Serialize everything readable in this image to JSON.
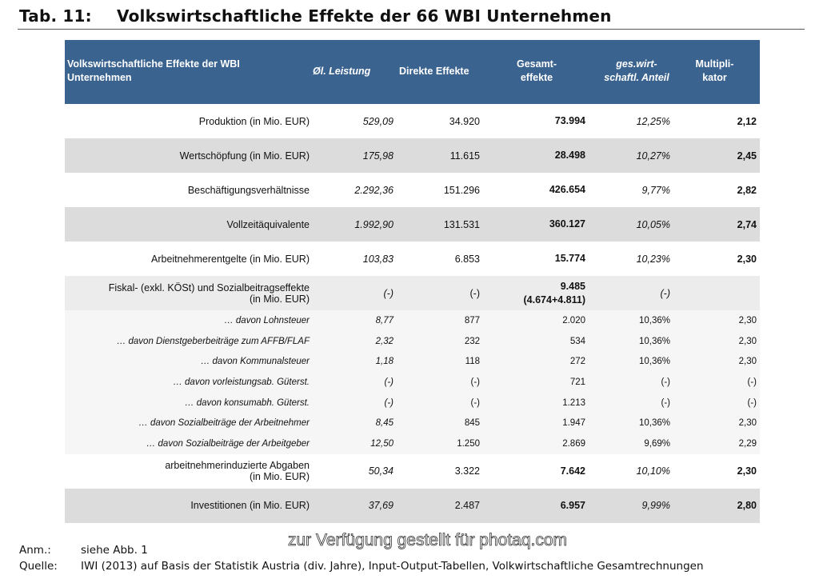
{
  "title": {
    "number": "Tab. 11:",
    "text": "Volkswirtschaftliche Effekte der 66 WBI Unternehmen"
  },
  "header": {
    "label": "Volkswirtschaftliche Effekte der WBI Unternehmen",
    "col1": "Øl. Leistung",
    "col2": "Direkte Effekte",
    "col3": "Gesamt-\neffekte",
    "col4": "ges.wirt-\nschaftl. Anteil",
    "col5": "Multipli-\nkator"
  },
  "rows": [
    {
      "label": "Produktion (in Mio. EUR)",
      "v1": "529,09",
      "v2": "34.920",
      "v3": "73.994",
      "v4": "12,25%",
      "v5": "2,12"
    },
    {
      "label": "Wertschöpfung (in Mio. EUR)",
      "v1": "175,98",
      "v2": "11.615",
      "v3": "28.498",
      "v4": "10,27%",
      "v5": "2,45"
    },
    {
      "label": "Beschäftigungsverhältnisse",
      "v1": "2.292,36",
      "v2": "151.296",
      "v3": "426.654",
      "v4": "9,77%",
      "v5": "2,82"
    },
    {
      "label": "Vollzeitäquivalente",
      "v1": "1.992,90",
      "v2": "131.531",
      "v3": "360.127",
      "v4": "10,05%",
      "v5": "2,74"
    },
    {
      "label": "Arbeitnehmerentgelte (in Mio. EUR)",
      "v1": "103,83",
      "v2": "6.853",
      "v3": "15.774",
      "v4": "10,23%",
      "v5": "2,30"
    },
    {
      "label": "Fiskal- (exkl. KÖSt) und Sozialbeitragseffekte\n(in Mio. EUR)",
      "v1": "(-)",
      "v2": "(-)",
      "v3": "9.485\n(4.674+4.811)",
      "v4": "(-)",
      "v5": ""
    }
  ],
  "subrows": [
    {
      "label": "… davon Lohnsteuer",
      "v1": "8,77",
      "v2": "877",
      "v3": "2.020",
      "v4": "10,36%",
      "v5": "2,30"
    },
    {
      "label": "… davon Dienstgeberbeiträge zum AFFB/FLAF",
      "v1": "2,32",
      "v2": "232",
      "v3": "534",
      "v4": "10,36%",
      "v5": "2,30"
    },
    {
      "label": "… davon Kommunalsteuer",
      "v1": "1,18",
      "v2": "118",
      "v3": "272",
      "v4": "10,36%",
      "v5": "2,30"
    },
    {
      "label": "… davon vorleistungsab. Güterst.",
      "v1": "(-)",
      "v2": "(-)",
      "v3": "721",
      "v4": "(-)",
      "v5": "(-)"
    },
    {
      "label": "… davon konsumabh. Güterst.",
      "v1": "(-)",
      "v2": "(-)",
      "v3": "1.213",
      "v4": "(-)",
      "v5": "(-)"
    },
    {
      "label": "… davon Sozialbeiträge der Arbeitnehmer",
      "v1": "8,45",
      "v2": "845",
      "v3": "1.947",
      "v4": "10,36%",
      "v5": "2,30"
    },
    {
      "label": "… davon Sozialbeiträge der Arbeitgeber",
      "v1": "12,50",
      "v2": "1.250",
      "v3": "2.869",
      "v4": "9,69%",
      "v5": "2,29"
    }
  ],
  "rows2": [
    {
      "label": "arbeitnehmerinduzierte Abgaben\n(in Mio. EUR)",
      "v1": "50,34",
      "v2": "3.322",
      "v3": "7.642",
      "v4": "10,10%",
      "v5": "2,30"
    },
    {
      "label": "Investitionen (in Mio. EUR)",
      "v1": "37,69",
      "v2": "2.487",
      "v3": "6.957",
      "v4": "9,99%",
      "v5": "2,80"
    }
  ],
  "footer": {
    "anm_key": "Anm.:",
    "anm": "siehe Abb. 1",
    "quelle_key": "Quelle:",
    "quelle": "IWI (2013) auf Basis der Statistik Austria (div. Jahre), Input-Output-Tabellen, Volkwirtschaftliche Gesamtrechnungen"
  },
  "watermark": "zur Verfügung gestellt für photaq.com"
}
